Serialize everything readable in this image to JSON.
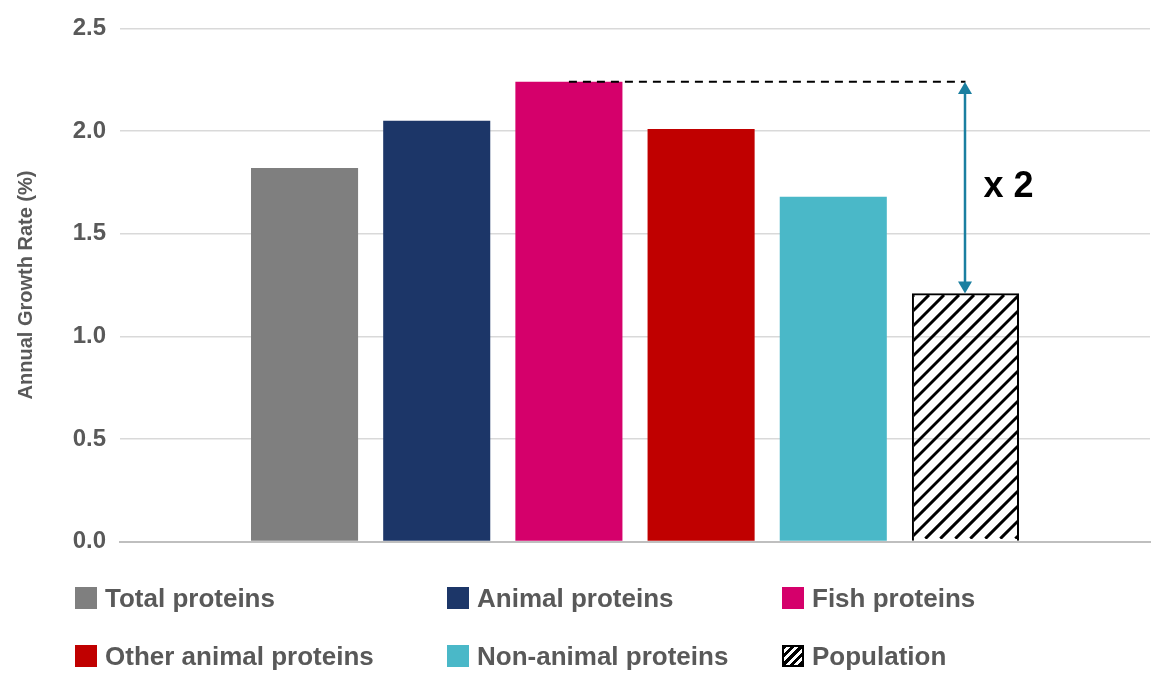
{
  "chart_data": {
    "type": "bar",
    "ylabel": "Annual Growth Rate (%)",
    "categories": [
      null
    ],
    "series": [
      {
        "name": "Total proteins",
        "color": "#7f7f7f",
        "values": [
          1.82
        ]
      },
      {
        "name": "Animal proteins",
        "color": "#1c3668",
        "values": [
          2.05
        ]
      },
      {
        "name": "Fish proteins",
        "color": "#d5006b",
        "values": [
          2.24
        ]
      },
      {
        "name": "Other animal proteins",
        "color": "#c00000",
        "values": [
          2.01
        ]
      },
      {
        "name": "Non-animal proteins",
        "color": "#4ab8c8",
        "values": [
          1.68
        ]
      },
      {
        "name": "Population",
        "color": "#000000",
        "values": [
          1.21
        ]
      }
    ],
    "ylim": [
      0,
      2.5
    ],
    "yticks": [
      {
        "value": 0,
        "label": "0.0"
      },
      {
        "value": 0.5,
        "label": "0.5"
      },
      {
        "value": 1,
        "label": "1.0"
      },
      {
        "value": 1.5,
        "label": "1.5"
      },
      {
        "value": 2,
        "label": "2.0"
      },
      {
        "value": 2.5,
        "label": "2.5"
      }
    ],
    "grid": "y",
    "legend": "bottom",
    "ref_lines": [
      {
        "axis": "y",
        "value": 2.24,
        "color": "#000000",
        "line_style": "dashed"
      }
    ],
    "annotations": [
      "x 2"
    ]
  }
}
